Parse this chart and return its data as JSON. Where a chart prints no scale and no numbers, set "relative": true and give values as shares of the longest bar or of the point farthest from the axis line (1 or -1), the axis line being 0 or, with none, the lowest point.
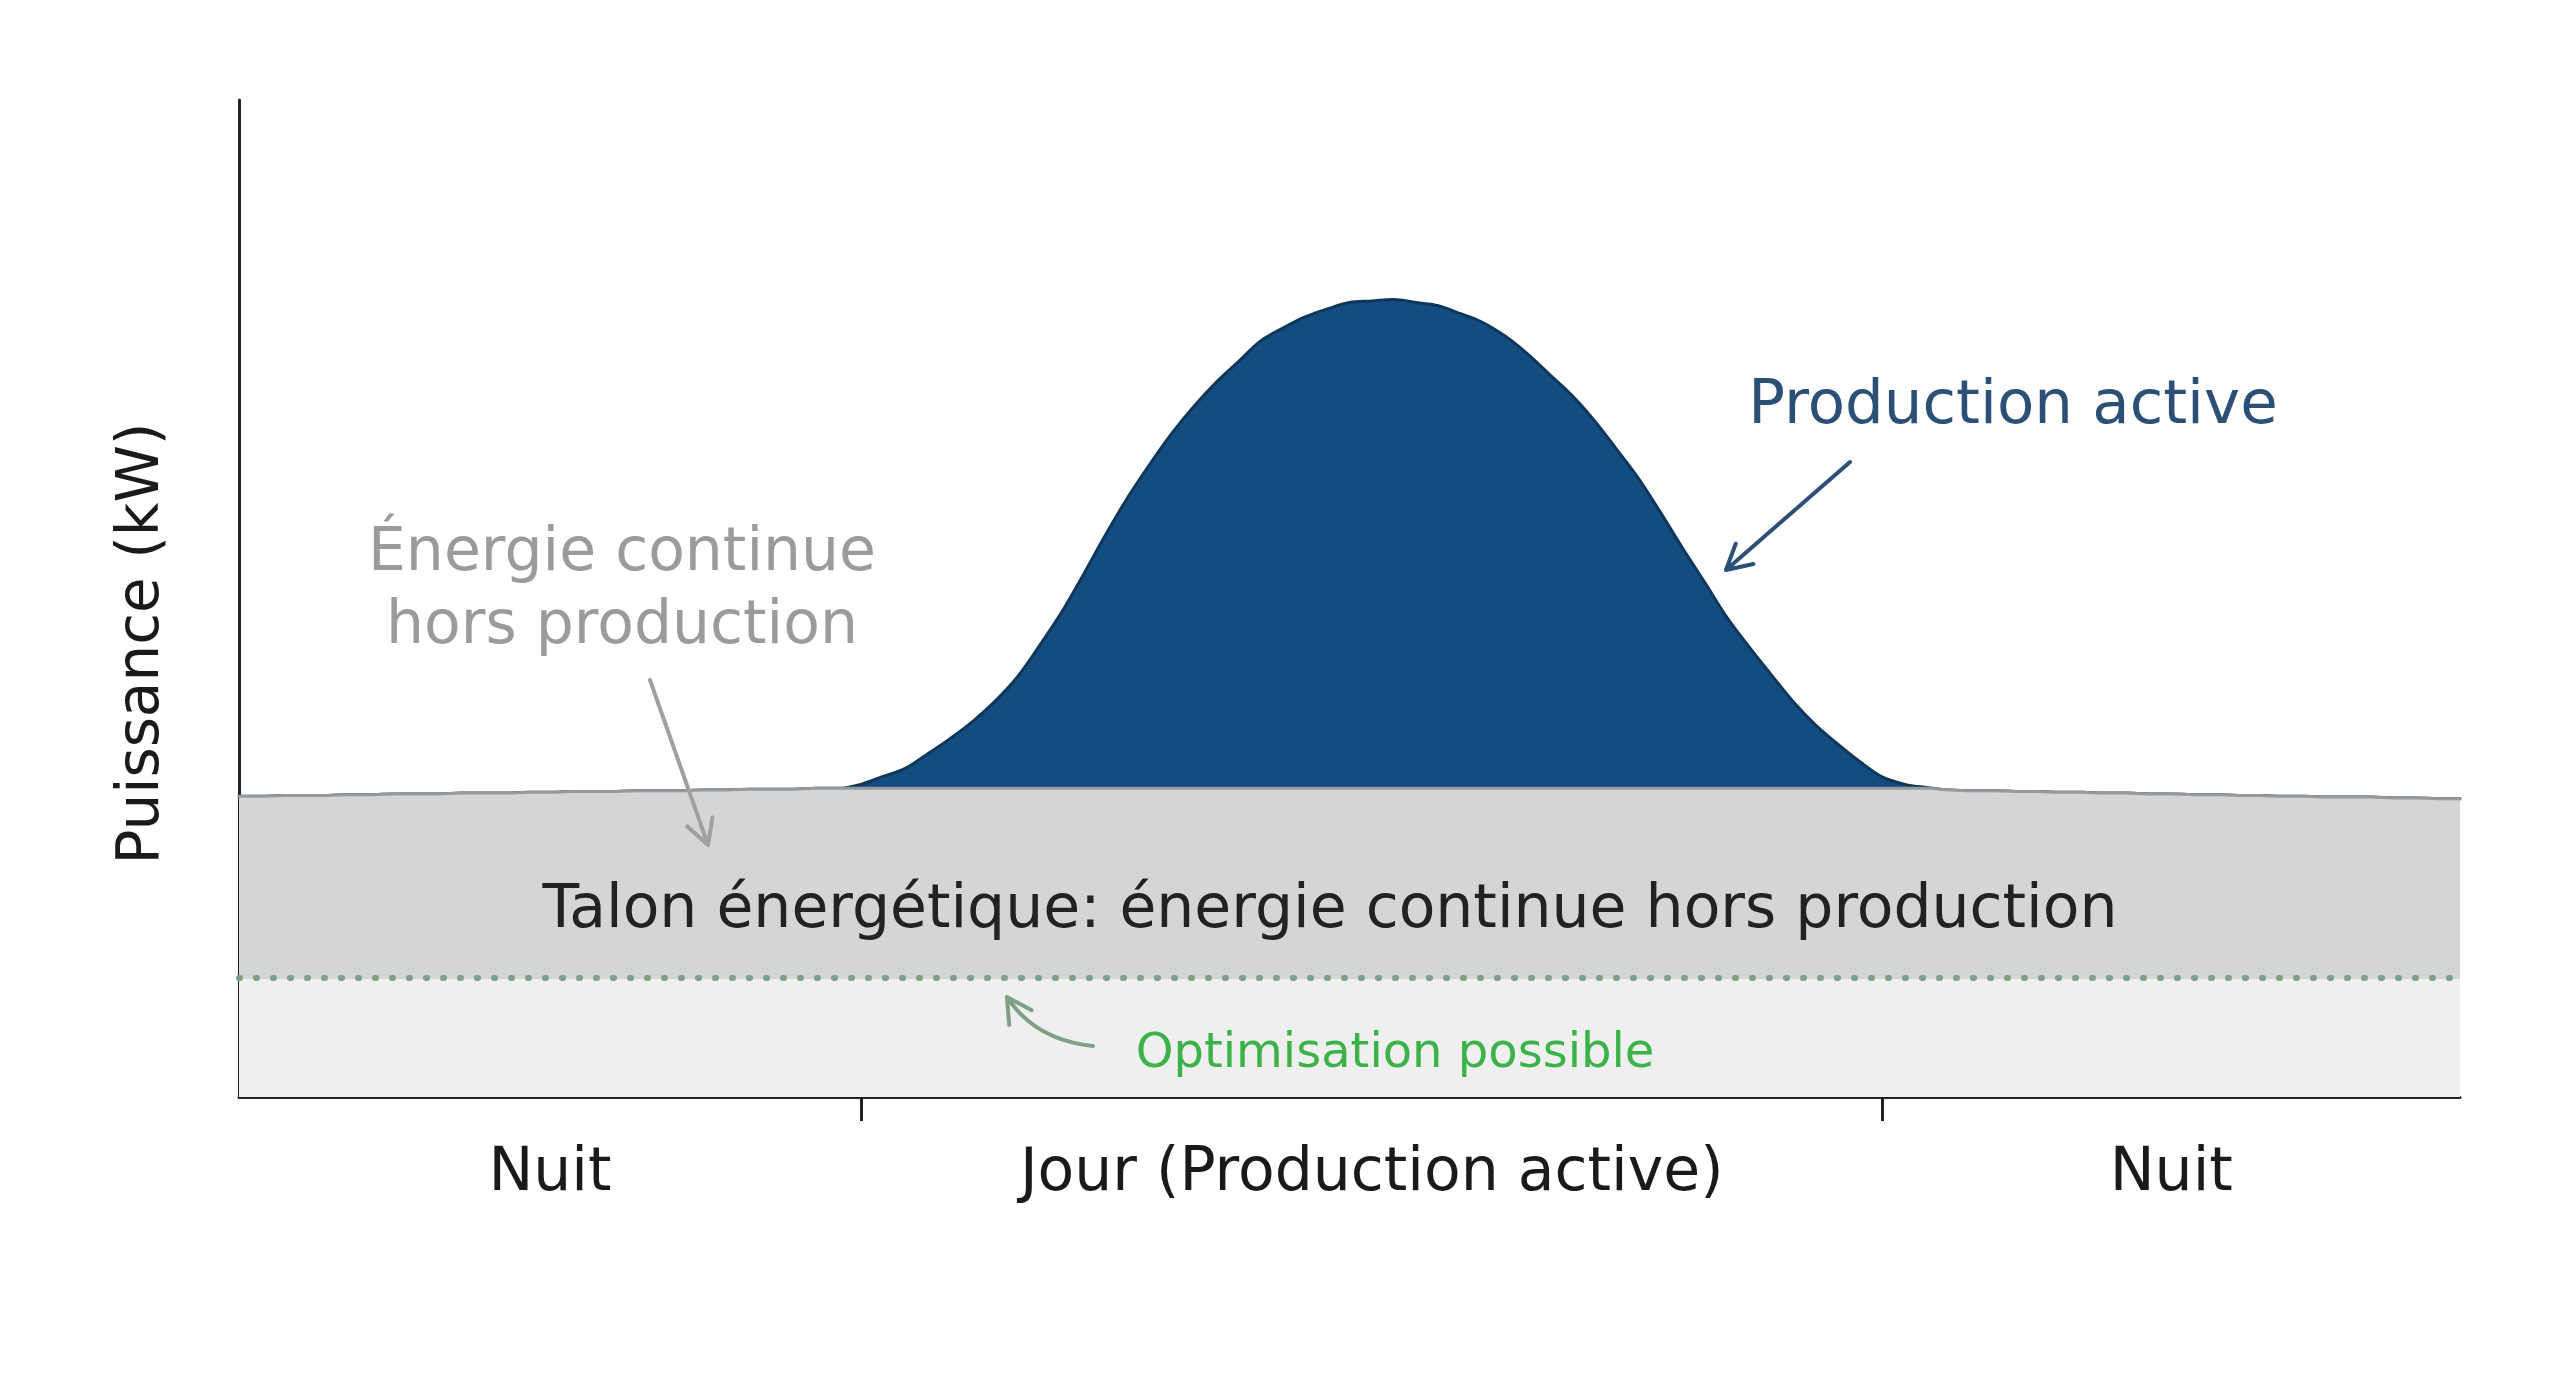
{
  "chart_data": {
    "type": "area",
    "ylabel": "Puissance (kW)",
    "relative": true,
    "stacked": true,
    "categories": [
      null,
      null,
      null,
      null,
      null,
      null,
      null,
      null,
      null,
      null,
      null,
      null,
      null,
      null,
      "Nuit",
      null,
      null,
      null,
      null,
      null,
      null,
      null,
      null,
      null,
      null,
      null,
      null,
      null,
      null,
      null,
      null,
      null,
      null,
      null,
      null,
      null,
      null,
      null,
      null,
      null,
      null,
      null,
      null,
      null,
      null,
      null,
      null,
      null,
      null,
      null,
      null,
      "Jour (Production active)",
      null,
      null,
      null,
      null,
      null,
      null,
      null,
      null,
      null,
      null,
      null,
      null,
      null,
      null,
      null,
      null,
      null,
      null,
      null,
      null,
      null,
      null,
      null,
      null,
      null,
      null,
      null,
      null,
      null,
      null,
      null,
      null,
      null,
      null,
      null,
      "Nuit",
      null,
      null,
      null,
      null,
      null,
      null,
      null,
      null,
      null,
      null,
      null,
      null,
      null
    ],
    "series": [
      {
        "name": "Talon énergétique: énergie continue hors production",
        "color": "#d3d5d7",
        "values": [
          0.377,
          0.377,
          0.378,
          0.378,
          0.378,
          0.379,
          0.379,
          0.38,
          0.38,
          0.38,
          0.381,
          0.381,
          0.381,
          0.382,
          0.382,
          0.383,
          0.383,
          0.383,
          0.384,
          0.384,
          0.384,
          0.385,
          0.385,
          0.386,
          0.386,
          0.386,
          0.387,
          0.387,
          0.387,
          0.387,
          0.387,
          0.387,
          0.387,
          0.387,
          0.387,
          0.387,
          0.387,
          0.387,
          0.387,
          0.387,
          0.387,
          0.387,
          0.387,
          0.387,
          0.387,
          0.387,
          0.387,
          0.387,
          0.387,
          0.387,
          0.387,
          0.387,
          0.387,
          0.387,
          0.387,
          0.387,
          0.387,
          0.387,
          0.387,
          0.387,
          0.387,
          0.387,
          0.387,
          0.387,
          0.387,
          0.387,
          0.387,
          0.387,
          0.387,
          0.387,
          0.387,
          0.387,
          0.387,
          0.387,
          0.387,
          0.387,
          0.387,
          0.385,
          0.384,
          0.384,
          0.383,
          0.383,
          0.382,
          0.382,
          0.381,
          0.381,
          0.38,
          0.38,
          0.379,
          0.379,
          0.378,
          0.378,
          0.377,
          0.377,
          0.376,
          0.376,
          0.376,
          0.375,
          0.375,
          0.374,
          0.374
        ]
      },
      {
        "name": "Production active",
        "color": "#134d7f",
        "values": [
          0,
          0,
          0,
          0,
          0,
          0,
          0,
          0,
          0,
          0,
          0,
          0,
          0,
          0,
          0,
          0,
          0,
          0,
          0,
          0,
          0,
          0,
          0,
          0,
          0,
          0,
          0,
          0,
          0.005,
          0.015,
          0.025,
          0.043,
          0.062,
          0.083,
          0.108,
          0.138,
          0.177,
          0.219,
          0.267,
          0.317,
          0.364,
          0.406,
          0.445,
          0.479,
          0.509,
          0.535,
          0.561,
          0.577,
          0.591,
          0.601,
          0.609,
          0.611,
          0.613,
          0.609,
          0.605,
          0.595,
          0.584,
          0.567,
          0.545,
          0.519,
          0.493,
          0.462,
          0.426,
          0.389,
          0.346,
          0.301,
          0.258,
          0.214,
          0.177,
          0.142,
          0.108,
          0.079,
          0.055,
          0.033,
          0.014,
          0.005,
          0.001,
          0,
          0,
          0,
          0,
          0,
          0,
          0,
          0,
          0,
          0,
          0,
          0,
          0,
          0,
          0,
          0,
          0,
          0,
          0,
          0,
          0,
          0,
          0,
          0
        ]
      }
    ],
    "bands": [
      {
        "axis": "y",
        "from": 0,
        "to": 0.148,
        "color": "#efefef"
      }
    ],
    "ref_lines": [
      {
        "axis": "y",
        "value": 0.148,
        "label": "Optimisation possible",
        "color": "#7f9f86",
        "line_style": "dotted"
      }
    ],
    "annotations": [
      "Énergie continue hors production"
    ]
  }
}
